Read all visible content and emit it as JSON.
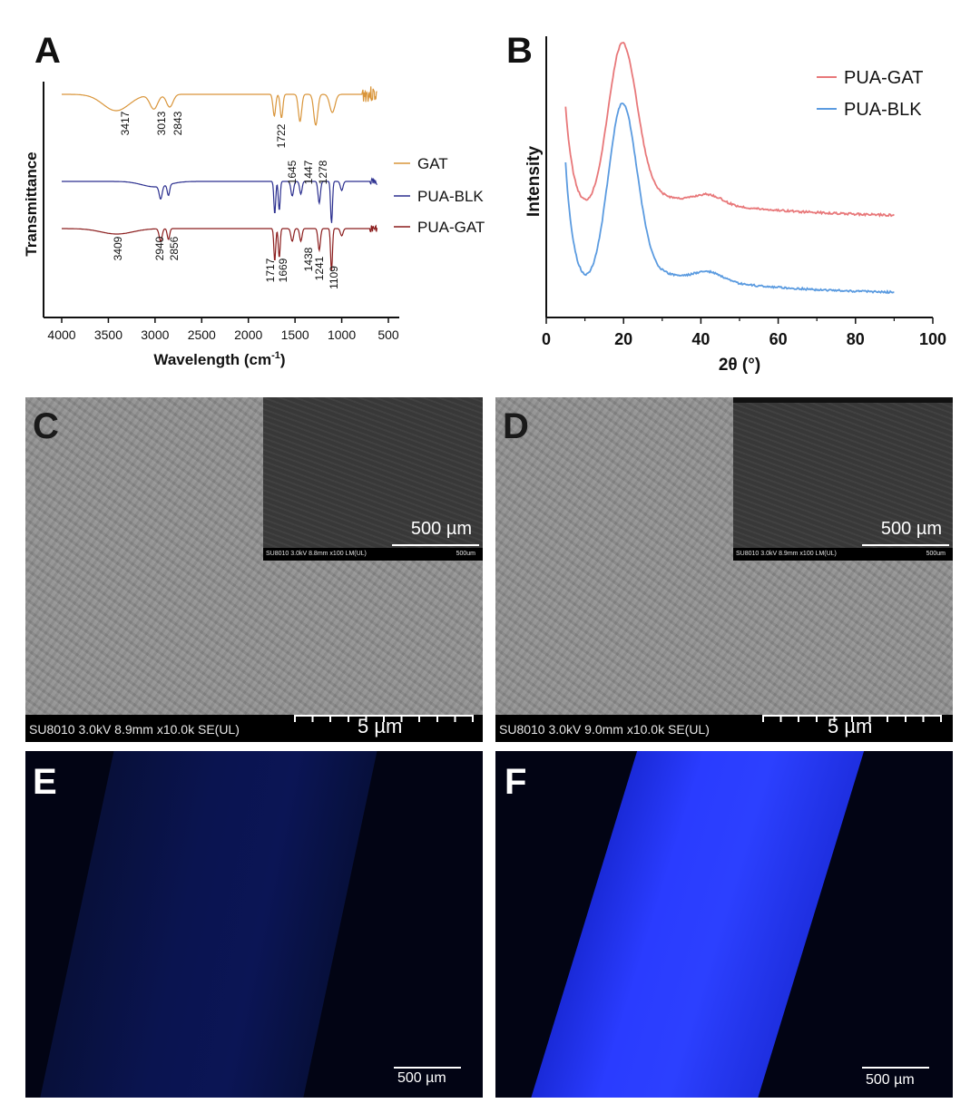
{
  "panels": {
    "a": {
      "label": "A"
    },
    "b": {
      "label": "B"
    },
    "c": {
      "label": "C",
      "inset_scale": "500 µm",
      "inset_bar_text": "SU8010 3.0kV 8.8mm x100 LM(UL)",
      "inset_bar_scale": "500um",
      "main_scale": "5 µm",
      "info": "SU8010 3.0kV 8.9mm x10.0k SE(UL)"
    },
    "d": {
      "label": "D",
      "inset_scale": "500 µm",
      "inset_bar_text": "SU8010 3.0kV 8.9mm x100 LM(UL)",
      "inset_bar_scale": "500um",
      "main_scale": "5 µm",
      "info": "SU8010 3.0kV 9.0mm x10.0k SE(UL)"
    },
    "e": {
      "label": "E",
      "scale": "500 µm"
    },
    "f": {
      "label": "F",
      "scale": "500 µm"
    }
  },
  "chart_data": [
    {
      "type": "line",
      "panel": "A",
      "xlabel": "Wavelength (cm-1)",
      "xlabel_main": "Wavelength (cm",
      "xlabel_sup": "-1",
      "xlabel_close": ")",
      "ylabel": "Transmittance",
      "xlim": [
        4000,
        500
      ],
      "x_ticks": [
        4000,
        3500,
        3000,
        2500,
        2000,
        1500,
        1000,
        500
      ],
      "colors": {
        "GAT": "#d9953a",
        "PUA-BLK": "#2b2f8f",
        "PUA-GAT": "#8b1d1d"
      },
      "series": [
        {
          "name": "GAT",
          "color": "#d9953a"
        },
        {
          "name": "PUA-BLK",
          "color": "#2b2f8f"
        },
        {
          "name": "PUA-GAT",
          "color": "#8b1d1d"
        }
      ],
      "annotations_gat": [
        "3417",
        "3013",
        "2843",
        "1722",
        "1645",
        "1447",
        "1278"
      ],
      "annotations_pua_gat": [
        "3409",
        "2940",
        "2856",
        "1717",
        "1669",
        "1438",
        "1241",
        "1109"
      ]
    },
    {
      "type": "line",
      "panel": "B",
      "xlabel": "2θ (°)",
      "ylabel": "Intensity",
      "xlim": [
        0,
        100
      ],
      "x_ticks": [
        0,
        20,
        40,
        60,
        80,
        100
      ],
      "series": [
        {
          "name": "PUA-GAT",
          "color": "#e8787a"
        },
        {
          "name": "PUA-BLK",
          "color": "#5b9be0"
        }
      ]
    }
  ]
}
